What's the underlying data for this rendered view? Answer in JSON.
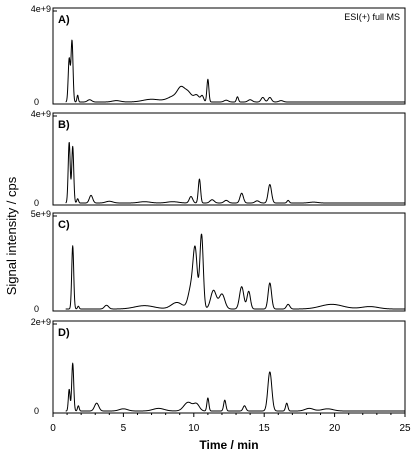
{
  "chart_data": {
    "type": "line",
    "ylabel": "Signal intensity / cps",
    "xlabel": "Time / min",
    "xlim": [
      0,
      25
    ],
    "x_ticks": [
      "0",
      "5",
      "10",
      "15",
      "20",
      "25"
    ],
    "panels": [
      {
        "label": "A)",
        "ymax_label": "4e+9",
        "ymin_label": "0",
        "ymax": 4000000000,
        "annotation": "ESI(+) full MS",
        "peaks": [
          {
            "x": 1.15,
            "y": 1900000000,
            "w": 0.07
          },
          {
            "x": 1.35,
            "y": 2700000000,
            "w": 0.07
          },
          {
            "x": 1.75,
            "y": 300000000,
            "w": 0.05
          },
          {
            "x": 2.6,
            "y": 100000000,
            "w": 0.15
          },
          {
            "x": 4.5,
            "y": 60000000,
            "w": 0.3
          },
          {
            "x": 7.0,
            "y": 120000000,
            "w": 0.6
          },
          {
            "x": 8.6,
            "y": 250000000,
            "w": 0.45
          },
          {
            "x": 9.1,
            "y": 500000000,
            "w": 0.25
          },
          {
            "x": 9.6,
            "y": 400000000,
            "w": 0.25
          },
          {
            "x": 10.2,
            "y": 300000000,
            "w": 0.2
          },
          {
            "x": 10.6,
            "y": 250000000,
            "w": 0.1
          },
          {
            "x": 11.0,
            "y": 1000000000,
            "w": 0.07
          },
          {
            "x": 12.3,
            "y": 80000000,
            "w": 0.15
          },
          {
            "x": 13.1,
            "y": 230000000,
            "w": 0.07
          },
          {
            "x": 14.0,
            "y": 100000000,
            "w": 0.15
          },
          {
            "x": 14.9,
            "y": 200000000,
            "w": 0.12
          },
          {
            "x": 15.4,
            "y": 200000000,
            "w": 0.12
          },
          {
            "x": 16.2,
            "y": 60000000,
            "w": 0.15
          }
        ]
      },
      {
        "label": "B)",
        "ymax_label": "4e+9",
        "ymin_label": "0",
        "ymax": 4000000000,
        "annotation": "",
        "peaks": [
          {
            "x": 1.15,
            "y": 2800000000,
            "w": 0.07
          },
          {
            "x": 1.4,
            "y": 2600000000,
            "w": 0.07
          },
          {
            "x": 1.75,
            "y": 200000000,
            "w": 0.06
          },
          {
            "x": 2.7,
            "y": 350000000,
            "w": 0.12
          },
          {
            "x": 4.0,
            "y": 80000000,
            "w": 0.25
          },
          {
            "x": 6.5,
            "y": 60000000,
            "w": 0.4
          },
          {
            "x": 8.5,
            "y": 60000000,
            "w": 0.4
          },
          {
            "x": 9.8,
            "y": 300000000,
            "w": 0.12
          },
          {
            "x": 10.4,
            "y": 1100000000,
            "w": 0.08
          },
          {
            "x": 11.3,
            "y": 150000000,
            "w": 0.15
          },
          {
            "x": 12.3,
            "y": 120000000,
            "w": 0.15
          },
          {
            "x": 13.4,
            "y": 450000000,
            "w": 0.12
          },
          {
            "x": 14.5,
            "y": 100000000,
            "w": 0.15
          },
          {
            "x": 15.4,
            "y": 850000000,
            "w": 0.12
          },
          {
            "x": 16.7,
            "y": 120000000,
            "w": 0.08
          },
          {
            "x": 18.5,
            "y": 40000000,
            "w": 0.3
          }
        ]
      },
      {
        "label": "C)",
        "ymax_label": "5e+9",
        "ymin_label": "0",
        "ymax": 5000000000,
        "annotation": "",
        "peaks": [
          {
            "x": 1.4,
            "y": 3400000000,
            "w": 0.07
          },
          {
            "x": 1.8,
            "y": 150000000,
            "w": 0.06
          },
          {
            "x": 3.8,
            "y": 200000000,
            "w": 0.15
          },
          {
            "x": 6.5,
            "y": 180000000,
            "w": 0.7
          },
          {
            "x": 8.8,
            "y": 350000000,
            "w": 0.4
          },
          {
            "x": 9.8,
            "y": 1100000000,
            "w": 0.2
          },
          {
            "x": 10.1,
            "y": 3000000000,
            "w": 0.15
          },
          {
            "x": 10.55,
            "y": 4000000000,
            "w": 0.12
          },
          {
            "x": 11.4,
            "y": 1000000000,
            "w": 0.2
          },
          {
            "x": 12.0,
            "y": 800000000,
            "w": 0.2
          },
          {
            "x": 13.4,
            "y": 1200000000,
            "w": 0.15
          },
          {
            "x": 13.9,
            "y": 950000000,
            "w": 0.12
          },
          {
            "x": 15.4,
            "y": 1400000000,
            "w": 0.12
          },
          {
            "x": 16.7,
            "y": 250000000,
            "w": 0.12
          },
          {
            "x": 19.8,
            "y": 250000000,
            "w": 0.8
          },
          {
            "x": 22.5,
            "y": 130000000,
            "w": 0.6
          }
        ]
      },
      {
        "label": "D)",
        "ymax_label": "2e+9",
        "ymin_label": "0",
        "ymax": 2000000000,
        "annotation": "",
        "peaks": [
          {
            "x": 1.15,
            "y": 500000000,
            "w": 0.06
          },
          {
            "x": 1.4,
            "y": 1100000000,
            "w": 0.07
          },
          {
            "x": 1.8,
            "y": 120000000,
            "w": 0.06
          },
          {
            "x": 3.1,
            "y": 180000000,
            "w": 0.15
          },
          {
            "x": 5.0,
            "y": 50000000,
            "w": 0.3
          },
          {
            "x": 7.5,
            "y": 60000000,
            "w": 0.4
          },
          {
            "x": 9.6,
            "y": 200000000,
            "w": 0.3
          },
          {
            "x": 10.2,
            "y": 150000000,
            "w": 0.2
          },
          {
            "x": 11.0,
            "y": 300000000,
            "w": 0.07
          },
          {
            "x": 12.2,
            "y": 250000000,
            "w": 0.08
          },
          {
            "x": 13.6,
            "y": 120000000,
            "w": 0.1
          },
          {
            "x": 15.4,
            "y": 900000000,
            "w": 0.14
          },
          {
            "x": 16.6,
            "y": 180000000,
            "w": 0.08
          },
          {
            "x": 18.2,
            "y": 60000000,
            "w": 0.3
          },
          {
            "x": 19.5,
            "y": 50000000,
            "w": 0.4
          }
        ]
      }
    ],
    "grid": false,
    "legend": "none"
  }
}
